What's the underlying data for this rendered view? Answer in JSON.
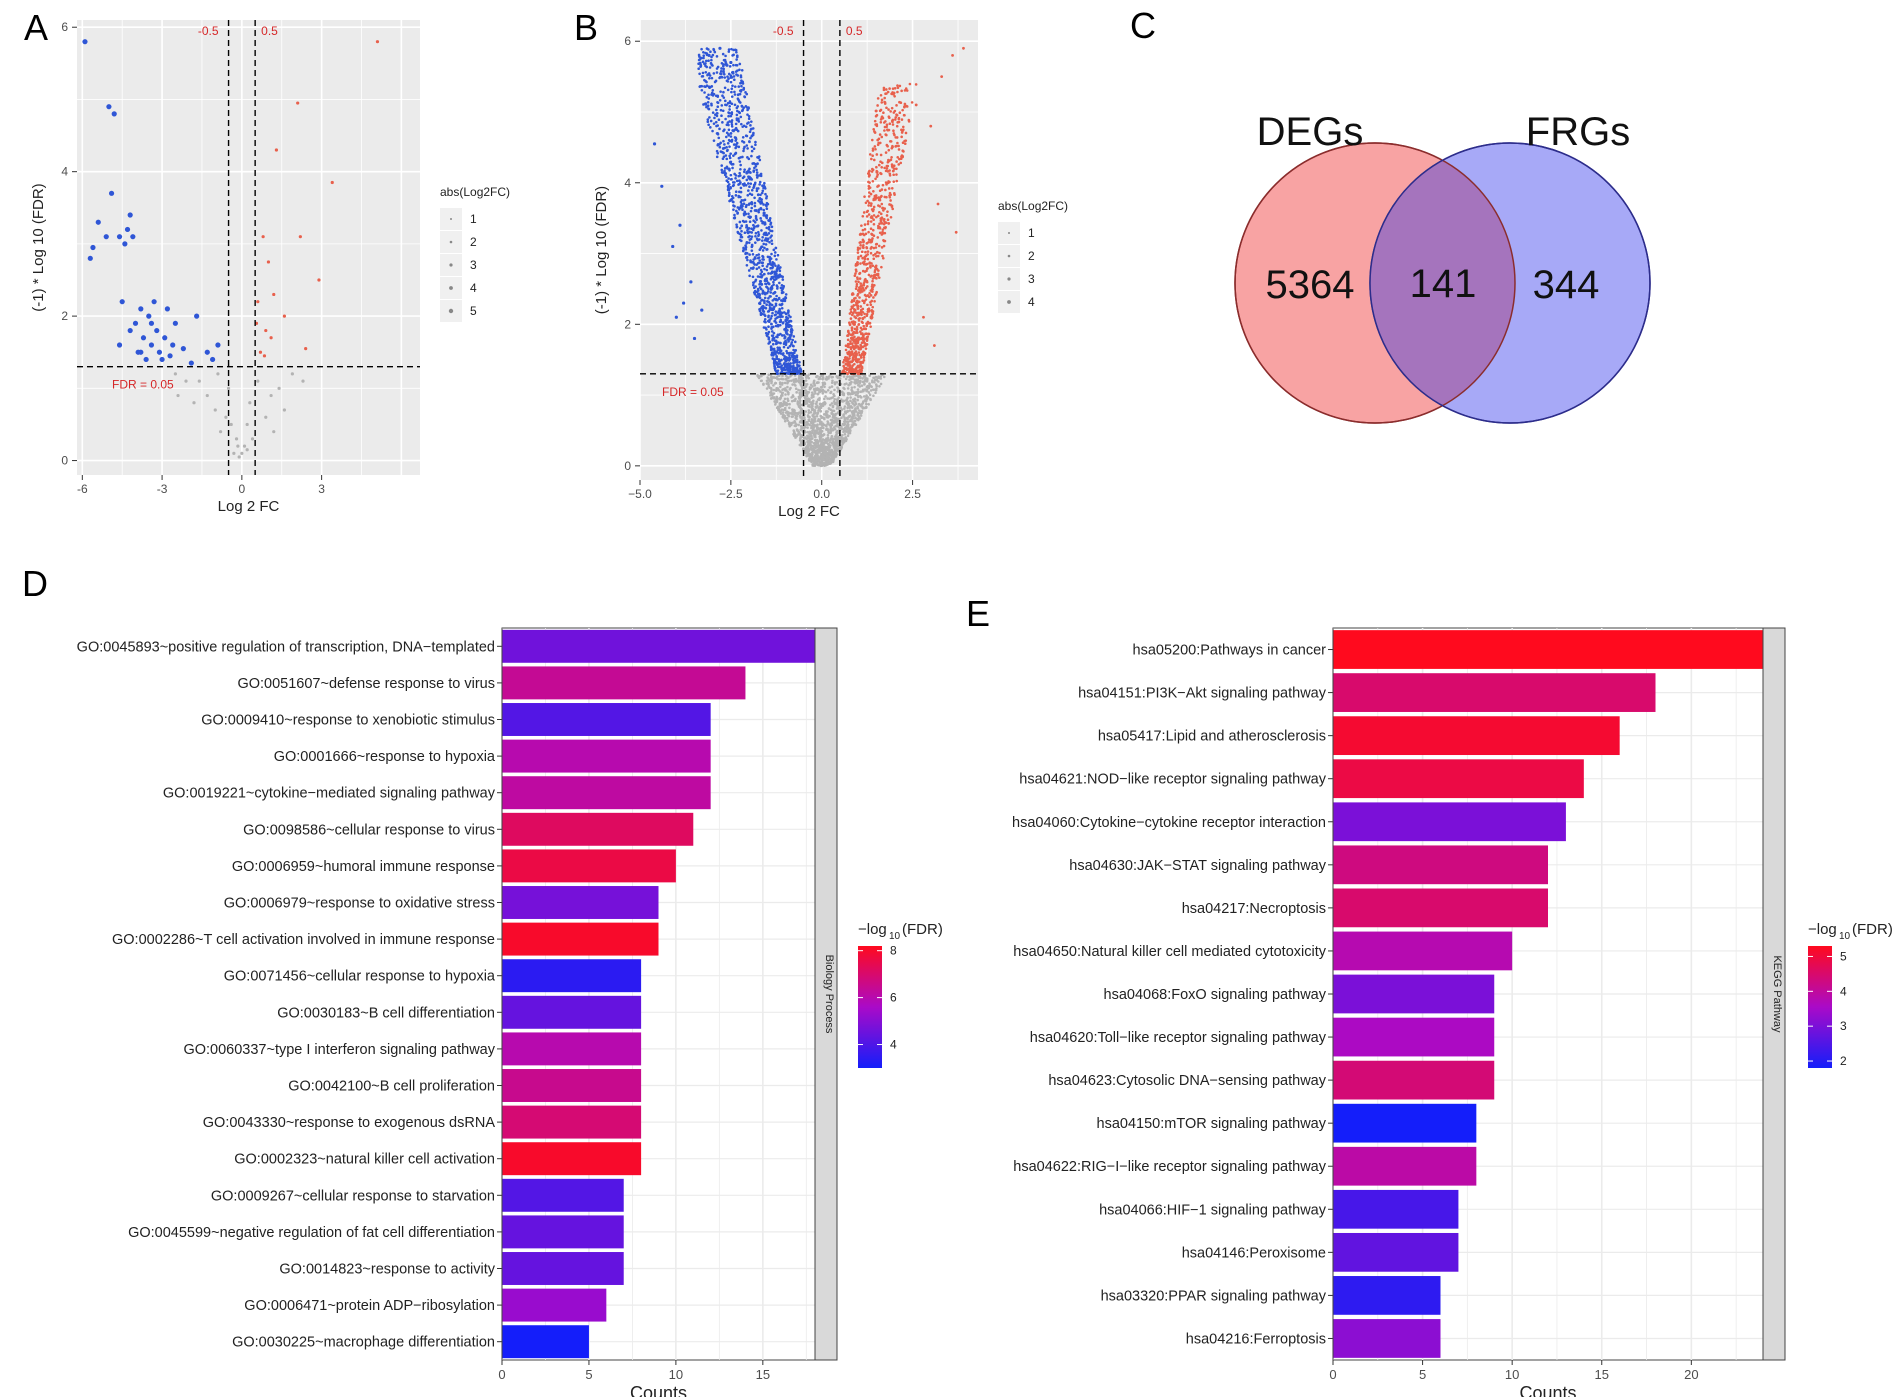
{
  "panels": {
    "A": "A",
    "B": "B",
    "C": "C",
    "D": "D",
    "E": "E"
  },
  "colors": {
    "panel_bg": "#ebebeb",
    "grid": "#ffffff",
    "down": "#2f56d6",
    "up": "#e8604c",
    "ns": "#b3b3b3",
    "threshold_text": "#d62728",
    "venn_left": "#f8a3a3",
    "venn_right": "#a7a9f7",
    "venn_overlap": "#a574bd",
    "strip": "#d9d9d9"
  },
  "chart_data": [
    {
      "id": "A",
      "type": "scatter",
      "title": "",
      "xlabel": "Log 2 FC",
      "ylabel": "(-1) * Log 10 (FDR)",
      "xlim": [
        -6.2,
        6.7
      ],
      "ylim": [
        -0.2,
        6.1
      ],
      "xticks": [
        -6,
        -3,
        0,
        3
      ],
      "xtick_labels": [
        "-6",
        "-3",
        "0",
        "3"
      ],
      "yticks": [
        0,
        2,
        4,
        6
      ],
      "ytick_labels": [
        "0",
        "2",
        "4",
        "6"
      ],
      "vlines": [
        -0.5,
        0.5
      ],
      "vline_labels": [
        "-0.5",
        "0.5"
      ],
      "hline": 1.3,
      "hline_label": "FDR = 0.05",
      "legend_title": "abs(Log2FC)",
      "legend_entries": [
        "1",
        "2",
        "3",
        "4",
        "5"
      ],
      "points_down": [
        [
          -5.9,
          5.8
        ],
        [
          -5.6,
          2.95
        ],
        [
          -5.7,
          2.8
        ],
        [
          -5.4,
          3.3
        ],
        [
          -5.0,
          4.9
        ],
        [
          -4.8,
          4.8
        ],
        [
          -5.1,
          3.1
        ],
        [
          -4.9,
          3.7
        ],
        [
          -4.6,
          3.1
        ],
        [
          -4.3,
          3.2
        ],
        [
          -4.4,
          3.0
        ],
        [
          -4.1,
          3.1
        ],
        [
          -4.2,
          3.4
        ],
        [
          -4.5,
          2.2
        ],
        [
          -4.0,
          1.9
        ],
        [
          -3.8,
          2.1
        ],
        [
          -3.7,
          1.7
        ],
        [
          -3.9,
          1.5
        ],
        [
          -3.5,
          2.0
        ],
        [
          -3.4,
          1.6
        ],
        [
          -3.2,
          1.8
        ],
        [
          -3.0,
          1.4
        ],
        [
          -2.8,
          2.1
        ],
        [
          -2.6,
          1.6
        ],
        [
          -3.3,
          2.2
        ],
        [
          -3.6,
          1.4
        ],
        [
          -2.9,
          1.7
        ],
        [
          -3.1,
          1.5
        ],
        [
          -2.5,
          1.9
        ],
        [
          -1.7,
          2.0
        ],
        [
          -1.3,
          1.5
        ],
        [
          -0.9,
          1.6
        ],
        [
          -4.2,
          1.8
        ],
        [
          -4.6,
          1.6
        ],
        [
          -3.4,
          1.9
        ],
        [
          -3.8,
          1.5
        ],
        [
          -2.7,
          1.45
        ],
        [
          -2.2,
          1.55
        ],
        [
          -1.9,
          1.35
        ],
        [
          -1.1,
          1.4
        ]
      ],
      "points_up": [
        [
          5.1,
          5.8
        ],
        [
          2.1,
          4.95
        ],
        [
          1.3,
          4.3
        ],
        [
          3.4,
          3.85
        ],
        [
          2.2,
          3.1
        ],
        [
          0.8,
          3.1
        ],
        [
          1.0,
          2.75
        ],
        [
          0.6,
          2.2
        ],
        [
          1.2,
          2.3
        ],
        [
          0.9,
          1.8
        ],
        [
          1.6,
          2.0
        ],
        [
          2.4,
          1.55
        ],
        [
          0.7,
          1.5
        ],
        [
          1.1,
          1.7
        ],
        [
          0.55,
          1.9
        ],
        [
          2.9,
          2.5
        ],
        [
          0.85,
          1.45
        ]
      ],
      "points_ns": [
        [
          -0.3,
          0.1
        ],
        [
          -0.2,
          0.3
        ],
        [
          0.1,
          0.2
        ],
        [
          0.2,
          0.5
        ],
        [
          -0.6,
          0.6
        ],
        [
          -0.8,
          0.4
        ],
        [
          0.9,
          0.6
        ],
        [
          1.1,
          0.9
        ],
        [
          -1.3,
          0.9
        ],
        [
          -1.6,
          1.1
        ],
        [
          -2.1,
          1.1
        ],
        [
          -2.5,
          1.2
        ],
        [
          1.4,
          1.0
        ],
        [
          1.9,
          1.2
        ],
        [
          -0.1,
          0.05
        ],
        [
          0.3,
          0.8
        ],
        [
          -0.5,
          1.0
        ],
        [
          0.6,
          1.1
        ],
        [
          -1.0,
          0.7
        ],
        [
          1.2,
          0.4
        ],
        [
          -0.9,
          1.2
        ],
        [
          0.4,
          0.3
        ],
        [
          -0.4,
          0.5
        ],
        [
          2.3,
          1.1
        ],
        [
          -1.8,
          0.8
        ],
        [
          -2.4,
          0.9
        ],
        [
          1.6,
          0.7
        ],
        [
          0.0,
          0.1
        ],
        [
          0.2,
          0.15
        ],
        [
          -0.15,
          0.2
        ]
      ]
    },
    {
      "id": "B",
      "type": "scatter",
      "title": "",
      "xlabel": "Log 2 FC",
      "ylabel": "(-1) * Log 10 (FDR)",
      "xlim": [
        -5.0,
        4.3
      ],
      "ylim": [
        -0.2,
        6.3
      ],
      "xticks": [
        -5.0,
        -2.5,
        0.0,
        2.5
      ],
      "xtick_labels": [
        "−5.0",
        "−2.5",
        "0.0",
        "2.5"
      ],
      "yticks": [
        0,
        2,
        4,
        6
      ],
      "ytick_labels": [
        "0",
        "2",
        "4",
        "6"
      ],
      "vlines": [
        -0.5,
        0.5
      ],
      "vline_labels": [
        "-0.5",
        "0.5"
      ],
      "hline": 1.3,
      "hline_label": "FDR = 0.05",
      "legend_title": "abs(Log2FC)",
      "legend_entries": [
        "1",
        "2",
        "3",
        "4"
      ],
      "points_down": [
        [
          -4.6,
          4.55
        ],
        [
          -4.4,
          3.95
        ],
        [
          -3.9,
          3.4
        ],
        [
          -4.1,
          3.1
        ],
        [
          -3.8,
          2.3
        ],
        [
          -3.6,
          2.6
        ],
        [
          -3.3,
          2.2
        ],
        [
          -3.5,
          1.8
        ],
        [
          -4.0,
          2.1
        ],
        [
          -3.1,
          5.8
        ],
        [
          -2.8,
          5.9
        ],
        [
          -2.5,
          5.7
        ]
      ],
      "points_up": [
        [
          3.6,
          5.8
        ],
        [
          3.3,
          5.5
        ],
        [
          3.0,
          4.8
        ],
        [
          3.2,
          3.7
        ],
        [
          3.7,
          3.3
        ],
        [
          2.8,
          2.1
        ],
        [
          3.1,
          1.7
        ],
        [
          2.6,
          5.1
        ],
        [
          3.9,
          5.9
        ]
      ],
      "dense_down": {
        "x_min": -3.4,
        "x_max": -0.55,
        "y_min": 1.3,
        "y_max": 5.9,
        "count": 1400
      },
      "dense_up": {
        "x_min": 0.55,
        "x_max": 2.6,
        "y_min": 1.3,
        "y_max": 5.4,
        "count": 900
      },
      "dense_ns": {
        "x_min": -2.2,
        "x_max": 2.2,
        "y_min": 0.0,
        "y_max": 1.3,
        "count": 1600
      }
    },
    {
      "id": "C",
      "type": "venn",
      "sets": [
        "DEGs",
        "FRGs"
      ],
      "only_left": 5364,
      "overlap": 141,
      "only_right": 344
    },
    {
      "id": "D",
      "type": "bar",
      "orientation": "horizontal",
      "xlabel": "Counts",
      "xlim": [
        0,
        18
      ],
      "xticks": [
        0,
        5,
        10,
        15
      ],
      "xtick_labels": [
        "0",
        "5",
        "10",
        "15"
      ],
      "facet_label": "Biology Process",
      "colorbar_title": "−log",
      "colorbar_sub": "10",
      "colorbar_suffix": "(FDR)",
      "colorbar_range": [
        3.0,
        8.2
      ],
      "colorbar_ticks": [
        4,
        6,
        8
      ],
      "colorbar_tick_labels": [
        "4",
        "6",
        "8"
      ],
      "categories": [
        "GO:0045893~positive regulation of transcription, DNA−templated",
        "GO:0051607~defense response to virus",
        "GO:0009410~response to xenobiotic stimulus",
        "GO:0001666~response to hypoxia",
        "GO:0019221~cytokine−mediated signaling pathway",
        "GO:0098586~cellular response to virus",
        "GO:0006959~humoral immune response",
        "GO:0006979~response to oxidative stress",
        "GO:0002286~T cell activation involved in immune response",
        "GO:0071456~cellular response to hypoxia",
        "GO:0030183~B cell differentiation",
        "GO:0060337~type I interferon signaling pathway",
        "GO:0042100~B cell proliferation",
        "GO:0043330~response to exogenous dsRNA",
        "GO:0002323~natural killer cell activation",
        "GO:0009267~cellular response to starvation",
        "GO:0045599~negative regulation of fat cell differentiation",
        "GO:0014823~response to activity",
        "GO:0006471~protein ADP−ribosylation",
        "GO:0030225~macrophage differentiation"
      ],
      "values": [
        18,
        14,
        12,
        12,
        12,
        11,
        10,
        9,
        9,
        8,
        8,
        8,
        8,
        8,
        8,
        7,
        7,
        7,
        6,
        5
      ],
      "color_values": [
        4.6,
        6.4,
        4.1,
        6.0,
        6.2,
        7.2,
        7.6,
        4.7,
        8.0,
        3.4,
        4.4,
        6.0,
        6.5,
        6.9,
        8.0,
        4.1,
        4.4,
        4.4,
        5.3,
        3.0
      ]
    },
    {
      "id": "E",
      "type": "bar",
      "orientation": "horizontal",
      "xlabel": "Counts",
      "xlim": [
        0,
        24
      ],
      "xticks": [
        0,
        5,
        10,
        15,
        20
      ],
      "xtick_labels": [
        "0",
        "5",
        "10",
        "15",
        "20"
      ],
      "facet_label": "KEGG Pathway",
      "colorbar_title": "−log",
      "colorbar_sub": "10",
      "colorbar_suffix": "(FDR)",
      "colorbar_range": [
        1.8,
        5.3
      ],
      "colorbar_ticks": [
        2,
        3,
        4,
        5
      ],
      "colorbar_tick_labels": [
        "2",
        "3",
        "4",
        "5"
      ],
      "categories": [
        "hsa05200:Pathways in cancer",
        "hsa04151:PI3K−Akt signaling pathway",
        "hsa05417:Lipid and atherosclerosis",
        "hsa04621:NOD−like receptor signaling pathway",
        "hsa04060:Cytokine−cytokine receptor interaction",
        "hsa04630:JAK−STAT signaling pathway",
        "hsa04217:Necroptosis",
        "hsa04650:Natural killer cell mediated cytotoxicity",
        "hsa04068:FoxO signaling pathway",
        "hsa04620:Toll−like receptor signaling pathway",
        "hsa04623:Cytosolic DNA−sensing pathway",
        "hsa04150:mTOR signaling pathway",
        "hsa04622:RIG−I−like receptor signaling pathway",
        "hsa04066:HIF−1 signaling pathway",
        "hsa04146:Peroxisome",
        "hsa03320:PPAR signaling pathway",
        "hsa04216:Ferroptosis"
      ],
      "values": [
        24,
        18,
        16,
        14,
        13,
        12,
        12,
        10,
        9,
        9,
        9,
        8,
        8,
        7,
        7,
        6,
        6
      ],
      "color_values": [
        5.3,
        4.5,
        5.1,
        4.9,
        3.0,
        4.3,
        4.5,
        3.8,
        3.0,
        3.6,
        4.4,
        1.8,
        3.9,
        2.4,
        2.7,
        2.1,
        3.2
      ]
    }
  ]
}
